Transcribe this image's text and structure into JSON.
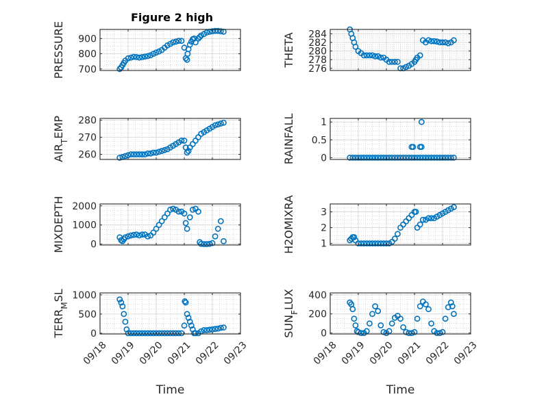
{
  "figure_title": "Figure 2 high",
  "x_ticks": [
    "09/18",
    "09/19",
    "09/20",
    "09/21",
    "09/22",
    "09/23"
  ],
  "x_label": "Time",
  "marker_color": "#0072BD",
  "chart_data": [
    {
      "type": "scatter",
      "ylabel": "PRESSURE",
      "ylim": [
        690,
        960
      ],
      "yticks": [
        700,
        800,
        900
      ],
      "x": [
        0.7,
        0.75,
        0.8,
        0.85,
        0.9,
        1.0,
        1.1,
        1.2,
        1.3,
        1.4,
        1.5,
        1.6,
        1.7,
        1.8,
        1.9,
        2.0,
        2.1,
        2.2,
        2.3,
        2.4,
        2.5,
        2.6,
        2.7,
        2.8,
        2.9,
        3.0,
        3.05,
        3.1,
        3.12,
        3.15,
        3.2,
        3.25,
        3.3,
        3.35,
        3.4,
        3.5,
        3.55,
        3.6,
        3.7,
        3.8,
        3.9,
        4.0,
        4.1,
        4.2,
        4.3,
        4.4
      ],
      "values": [
        700,
        710,
        725,
        740,
        755,
        770,
        775,
        780,
        778,
        775,
        778,
        782,
        785,
        790,
        800,
        808,
        815,
        825,
        840,
        855,
        865,
        875,
        880,
        885,
        885,
        840,
        770,
        760,
        800,
        830,
        860,
        880,
        895,
        900,
        875,
        900,
        910,
        920,
        930,
        940,
        945,
        948,
        950,
        950,
        948,
        945
      ]
    },
    {
      "type": "scatter",
      "ylabel": "THETA",
      "ylim": [
        275.5,
        285
      ],
      "yticks": [
        276,
        278,
        280,
        282,
        284
      ],
      "x": [
        0.7,
        0.75,
        0.8,
        0.85,
        0.9,
        1.0,
        1.1,
        1.2,
        1.3,
        1.4,
        1.5,
        1.6,
        1.7,
        1.8,
        1.9,
        2.0,
        2.1,
        2.2,
        2.3,
        2.4,
        2.5,
        2.6,
        2.7,
        2.8,
        2.9,
        3.0,
        3.05,
        3.1,
        3.2,
        3.3,
        3.4,
        3.5,
        3.6,
        3.7,
        3.8,
        3.9,
        4.0,
        4.1,
        4.2,
        4.3,
        4.4
      ],
      "values": [
        285,
        284,
        283,
        282,
        281,
        280,
        279.5,
        279,
        279,
        279,
        279,
        278.8,
        278.8,
        278.5,
        278.5,
        278,
        277.5,
        277.5,
        277.5,
        277.5,
        276,
        276,
        276.3,
        276.6,
        277,
        277.5,
        278,
        278.5,
        279,
        282.5,
        282,
        282.5,
        282.3,
        282.3,
        282.2,
        282,
        282,
        282,
        281.8,
        282,
        282.5
      ]
    },
    {
      "type": "scatter",
      "ylabel": "AIR_TEMP",
      "ylim": [
        257,
        281
      ],
      "yticks": [
        260,
        270,
        280
      ],
      "x": [
        0.7,
        0.8,
        0.9,
        1.0,
        1.1,
        1.2,
        1.3,
        1.4,
        1.5,
        1.6,
        1.7,
        1.8,
        1.9,
        2.0,
        2.1,
        2.2,
        2.3,
        2.4,
        2.5,
        2.6,
        2.7,
        2.8,
        2.9,
        3.0,
        3.05,
        3.1,
        3.15,
        3.2,
        3.3,
        3.4,
        3.5,
        3.6,
        3.7,
        3.8,
        3.9,
        4.0,
        4.1,
        4.2,
        4.3,
        4.4
      ],
      "values": [
        258,
        258.5,
        259,
        259.5,
        260,
        260,
        260,
        260,
        260,
        260,
        260.5,
        260.5,
        261,
        261,
        261.5,
        262,
        262.5,
        263,
        264,
        265,
        266,
        267,
        268,
        268,
        264,
        261,
        262,
        264,
        266,
        268,
        270,
        272,
        273,
        274,
        275,
        276,
        277,
        277.5,
        278,
        278.5
      ]
    },
    {
      "type": "scatter",
      "ylabel": "RAINFALL",
      "ylim": [
        -0.05,
        1.1
      ],
      "yticks": [
        0,
        0.5,
        1
      ],
      "x": [
        0.7,
        0.8,
        0.9,
        1.0,
        1.1,
        1.2,
        1.3,
        1.4,
        1.5,
        1.6,
        1.7,
        1.8,
        1.9,
        2.0,
        2.1,
        2.2,
        2.3,
        2.4,
        2.5,
        2.6,
        2.7,
        2.8,
        2.9,
        3.0,
        3.1,
        3.2,
        3.3,
        3.4,
        3.5,
        3.6,
        3.7,
        3.8,
        3.9,
        4.0,
        4.1,
        4.2,
        4.3,
        4.4,
        2.9,
        2.95,
        3.2,
        3.25,
        3.25
      ],
      "values": [
        0,
        0,
        0,
        0,
        0,
        0,
        0,
        0,
        0,
        0,
        0,
        0,
        0,
        0,
        0,
        0,
        0,
        0,
        0,
        0,
        0,
        0,
        0,
        0,
        0,
        0,
        0,
        0,
        0,
        0,
        0,
        0,
        0,
        0,
        0,
        0,
        0,
        0,
        0.3,
        0.3,
        0.3,
        0.3,
        1
      ]
    },
    {
      "type": "scatter",
      "ylabel": "MIXDEPTH",
      "ylim": [
        -50,
        2100
      ],
      "yticks": [
        0,
        1000,
        2000
      ],
      "x": [
        0.7,
        0.75,
        0.8,
        0.85,
        0.9,
        1.0,
        1.1,
        1.2,
        1.3,
        1.4,
        1.5,
        1.6,
        1.7,
        1.8,
        1.9,
        2.0,
        2.1,
        2.2,
        2.3,
        2.4,
        2.5,
        2.6,
        2.7,
        2.8,
        2.9,
        3.0,
        3.05,
        3.1,
        3.2,
        3.3,
        3.4,
        3.5,
        3.55,
        3.6,
        3.7,
        3.8,
        3.9,
        4.0,
        4.1,
        4.2,
        4.3,
        4.4
      ],
      "values": [
        350,
        200,
        150,
        250,
        350,
        400,
        450,
        480,
        500,
        450,
        500,
        500,
        400,
        450,
        600,
        800,
        1000,
        1200,
        1400,
        1600,
        1800,
        1850,
        1800,
        1700,
        1700,
        1600,
        1100,
        800,
        1400,
        1800,
        1850,
        1700,
        100,
        10,
        0,
        0,
        10,
        50,
        400,
        800,
        1200,
        150
      ]
    },
    {
      "type": "scatter",
      "ylabel": "H2OMIXRA",
      "ylim": [
        0.9,
        3.5
      ],
      "yticks": [
        1,
        2,
        3
      ],
      "x": [
        0.7,
        0.75,
        0.8,
        0.85,
        0.9,
        1.0,
        1.1,
        1.2,
        1.3,
        1.4,
        1.5,
        1.6,
        1.7,
        1.8,
        1.9,
        2.0,
        2.1,
        2.2,
        2.3,
        2.4,
        2.5,
        2.6,
        2.7,
        2.8,
        2.9,
        3.0,
        3.05,
        3.1,
        3.2,
        3.3,
        3.4,
        3.5,
        3.6,
        3.7,
        3.8,
        3.9,
        4.0,
        4.1,
        4.2,
        4.3,
        4.4
      ],
      "values": [
        1.2,
        1.3,
        1.4,
        1.4,
        1.2,
        1,
        1,
        1,
        1,
        1,
        1,
        1,
        1,
        1,
        1,
        1,
        1,
        1.1,
        1.3,
        1.6,
        2,
        2.2,
        2.4,
        2.6,
        2.8,
        3,
        3,
        2,
        2.2,
        2.5,
        2.5,
        2.6,
        2.6,
        2.6,
        2.7,
        2.8,
        2.9,
        3,
        3.1,
        3.2,
        3.3
      ]
    },
    {
      "type": "scatter",
      "ylabel": "TERR_MSL",
      "ylim": [
        -20,
        1050
      ],
      "yticks": [
        0,
        500,
        1000
      ],
      "x": [
        0.7,
        0.75,
        0.8,
        0.85,
        0.9,
        0.95,
        1.0,
        1.1,
        1.2,
        1.3,
        1.4,
        1.5,
        1.6,
        1.7,
        1.8,
        1.9,
        2.0,
        2.1,
        2.2,
        2.3,
        2.4,
        2.5,
        2.6,
        2.7,
        2.8,
        2.9,
        3.0,
        3.02,
        3.05,
        3.1,
        3.15,
        3.2,
        3.25,
        3.3,
        3.35,
        3.4,
        3.5,
        3.6,
        3.7,
        3.8,
        3.9,
        4.0,
        4.1,
        4.2,
        4.3,
        4.4
      ],
      "values": [
        880,
        800,
        700,
        500,
        300,
        100,
        0,
        0,
        0,
        0,
        0,
        0,
        0,
        0,
        0,
        0,
        0,
        0,
        0,
        0,
        0,
        0,
        0,
        0,
        0,
        0,
        200,
        830,
        800,
        500,
        400,
        300,
        200,
        100,
        0,
        0,
        0,
        50,
        80,
        80,
        90,
        100,
        110,
        120,
        140,
        150
      ]
    },
    {
      "type": "scatter",
      "ylabel": "SUN_FLUX",
      "ylim": [
        -10,
        420
      ],
      "yticks": [
        0,
        200,
        400
      ],
      "x": [
        0.7,
        0.75,
        0.8,
        0.85,
        0.9,
        0.95,
        1.0,
        1.1,
        1.2,
        1.3,
        1.4,
        1.5,
        1.6,
        1.7,
        1.8,
        1.9,
        2.0,
        2.1,
        2.2,
        2.3,
        2.4,
        2.5,
        2.6,
        2.7,
        2.8,
        2.9,
        3.0,
        3.1,
        3.2,
        3.3,
        3.4,
        3.5,
        3.6,
        3.7,
        3.8,
        3.9,
        4.0,
        4.1,
        4.2,
        4.3,
        4.35,
        4.4
      ],
      "values": [
        320,
        300,
        250,
        150,
        80,
        20,
        10,
        0,
        0,
        20,
        100,
        200,
        280,
        230,
        80,
        10,
        0,
        20,
        100,
        160,
        180,
        150,
        60,
        10,
        0,
        0,
        10,
        150,
        280,
        330,
        300,
        250,
        100,
        20,
        0,
        0,
        10,
        150,
        270,
        320,
        280,
        200
      ]
    }
  ]
}
